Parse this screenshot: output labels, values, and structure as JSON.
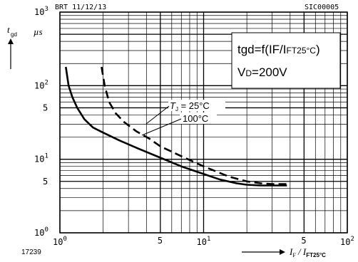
{
  "chart_data": {
    "type": "line",
    "x_scale": "log",
    "y_scale": "log",
    "xlim": [
      1,
      100
    ],
    "ylim": [
      1,
      1000
    ],
    "header_left": "BRT  11/12/13",
    "header_right": "SIC00005",
    "figure_number": "17239",
    "ylabel": {
      "main": "t",
      "sub": "gd",
      "unit": "µs"
    },
    "xlabel": {
      "num": "I",
      "num_sub": "F",
      "den": "I",
      "den_sub": "FT25°C"
    },
    "x_ticks": [
      {
        "value": 1,
        "base": "10",
        "exp": "0"
      },
      {
        "value": 5,
        "label": "5"
      },
      {
        "value": 10,
        "base": "10",
        "exp": "1"
      },
      {
        "value": 50,
        "label": "5"
      },
      {
        "value": 100,
        "base": "10",
        "exp": "2"
      }
    ],
    "y_ticks": [
      {
        "value": 1,
        "base": "10",
        "exp": "0"
      },
      {
        "value": 5,
        "label": "5"
      },
      {
        "value": 10,
        "base": "10",
        "exp": "1"
      },
      {
        "value": 50,
        "label": "5"
      },
      {
        "value": 100,
        "base": "10",
        "exp": "2"
      },
      {
        "value": 1000,
        "base": "10",
        "exp": "3"
      }
    ],
    "formula_box": {
      "line1_a": "tgd=f(IF/I",
      "line1_b": "FT25°C",
      "line1_c": ")",
      "line2_a": "V",
      "line2_b": "D",
      "line2_c": "=200V"
    },
    "series": [
      {
        "name": "T_J = 25°C",
        "label_T": "T",
        "label_sub": "J",
        "label_rest": " = 25°C",
        "style": "solid",
        "x": [
          1.1,
          1.15,
          1.22,
          1.32,
          1.48,
          1.7,
          2.0,
          2.6,
          3.5,
          5,
          7,
          10,
          13,
          17,
          20,
          25,
          30,
          38
        ],
        "y": [
          180,
          100,
          70,
          50,
          35,
          27,
          23,
          18,
          14,
          10.5,
          8,
          6.3,
          5.3,
          4.7,
          4.5,
          4.4,
          4.4,
          4.4
        ]
      },
      {
        "name": "100°C",
        "label_T": "",
        "label_sub": "",
        "label_rest": "100°C",
        "style": "dashed",
        "x": [
          1.95,
          2.05,
          2.2,
          2.45,
          2.8,
          3.4,
          4.2,
          5,
          7,
          10,
          15,
          20,
          25,
          30,
          38
        ],
        "y": [
          180,
          100,
          60,
          42,
          32,
          24,
          19,
          15,
          11,
          8,
          5.8,
          5.0,
          4.7,
          4.6,
          4.6
        ]
      }
    ]
  }
}
